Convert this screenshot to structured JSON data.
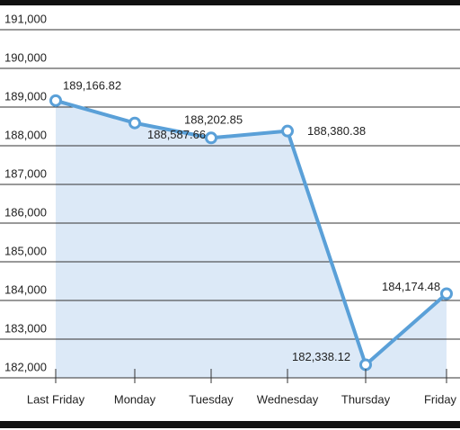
{
  "chart_data": {
    "type": "line",
    "categories": [
      "Last Friday",
      "Monday",
      "Tuesday",
      "Wednesday",
      "Thursday",
      "Friday"
    ],
    "values": [
      189166.82,
      188587.66,
      188202.85,
      188380.38,
      182338.12,
      184174.48
    ],
    "value_labels": [
      "189,166.82",
      "188,587.66",
      "188,202.85",
      "188,380.38",
      "182,338.12",
      "184,174.48"
    ],
    "color": "#5aa0d8",
    "fill": "#dce9f7",
    "ylim": [
      182000,
      191000
    ],
    "yticks": [
      {
        "value": 182000,
        "label": "182,000"
      },
      {
        "value": 183000,
        "label": "183,000"
      },
      {
        "value": 184000,
        "label": "184,000"
      },
      {
        "value": 185000,
        "label": "185,000"
      },
      {
        "value": 186000,
        "label": "186,000"
      },
      {
        "value": 187000,
        "label": "187,000"
      },
      {
        "value": 188000,
        "label": "188,000"
      },
      {
        "value": 189000,
        "label": "189,000"
      },
      {
        "value": 190000,
        "label": "190,000"
      },
      {
        "value": 191000,
        "label": "191,000"
      }
    ],
    "grid": true
  }
}
